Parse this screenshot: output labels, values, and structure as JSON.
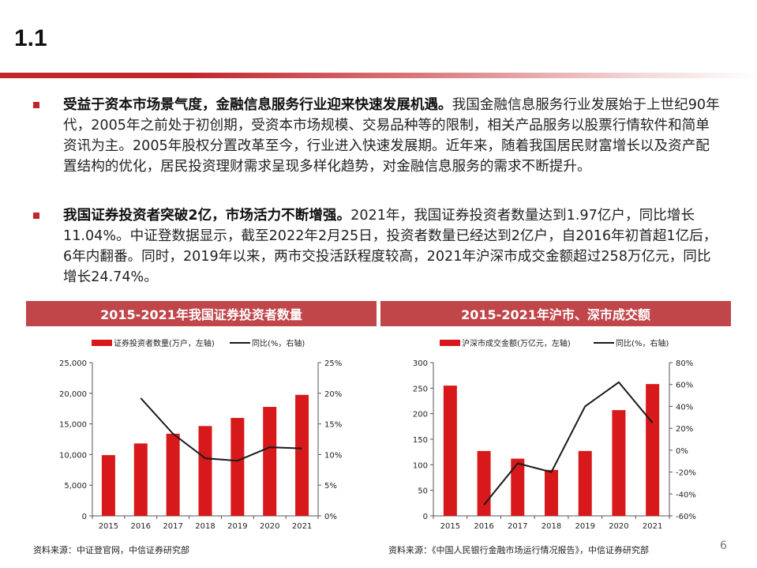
{
  "header": {
    "section_number": "1.1"
  },
  "bullets": [
    {
      "bold": "受益于资本市场景气度，金融信息服务行业迎来快速发展机遇。",
      "text": "我国金融信息服务行业发展始于上世纪90年代，2005年之前处于初创期，受资本市场规模、交易品种等的限制，相关产品服务以股票行情软件和简单资讯为主。2005年股权分置改革至今，行业进入快速发展期。近年来，随着我国居民财富增长以及资产配置结构的优化，居民投资理财需求呈现多样化趋势，对金融信息服务的需求不断提升。"
    },
    {
      "bold": "我国证券投资者突破2亿，市场活力不断增强。",
      "text": "2021年，我国证券投资者数量达到1.97亿户，同比增长11.04%。中证登数据显示，截至2022年2月25日，投资者数量已经达到2亿户，自2016年初首超1亿后，6年内翻番。同时，2019年以来，两市交投活跃程度较高，2021年沪深市成交金额超过258万亿元，同比增长24.74%。"
    }
  ],
  "chart_data": [
    {
      "type": "bar",
      "title": "2015-2021年我国证券投资者数量",
      "categories": [
        "2015",
        "2016",
        "2017",
        "2018",
        "2019",
        "2020",
        "2021"
      ],
      "series": [
        {
          "name": "证券投资者数量(万户，左轴)",
          "type": "bar",
          "axis": "left",
          "values": [
            9910,
            11811,
            13398,
            14651,
            15975,
            17777,
            19740
          ]
        },
        {
          "name": "同比(%，右轴)",
          "type": "line",
          "axis": "right",
          "values": [
            null,
            19.2,
            13.4,
            9.4,
            9.0,
            11.2,
            11.0
          ]
        }
      ],
      "y_left": {
        "min": 0,
        "max": 25000,
        "ticks": [
          "0",
          "5,000",
          "10,000",
          "15,000",
          "20,000",
          "25,000"
        ]
      },
      "y_right": {
        "min": 0,
        "max": 25,
        "ticks": [
          "0%",
          "5%",
          "10%",
          "15%",
          "20%",
          "25%"
        ]
      },
      "legend_position": "top",
      "grid": false,
      "colors": {
        "bar": "#d7191c",
        "line": "#1a1a1a"
      }
    },
    {
      "type": "bar",
      "title": "2015-2021年沪市、深市成交额",
      "categories": [
        "2015",
        "2016",
        "2017",
        "2018",
        "2019",
        "2020",
        "2021"
      ],
      "series": [
        {
          "name": "沪深市成交金额(万亿元，左轴)",
          "type": "bar",
          "axis": "left",
          "values": [
            255,
            127,
            112,
            90,
            127,
            207,
            258
          ]
        },
        {
          "name": "同比(%，右轴)",
          "type": "line",
          "axis": "right",
          "values": [
            null,
            -50,
            -12,
            -20,
            40,
            62,
            25
          ]
        }
      ],
      "y_left": {
        "min": 0,
        "max": 300,
        "ticks": [
          "0",
          "50",
          "100",
          "150",
          "200",
          "250",
          "300"
        ]
      },
      "y_right": {
        "min": -60,
        "max": 80,
        "ticks": [
          "-60%",
          "-40%",
          "-20%",
          "0%",
          "20%",
          "40%",
          "60%",
          "80%"
        ]
      },
      "legend_position": "top",
      "grid": false,
      "colors": {
        "bar": "#d7191c",
        "line": "#1a1a1a"
      }
    }
  ],
  "sources": [
    "资料来源：中证登官网，中信证券研究部",
    "资料来源：《中国人民银行金融市场运行情况报告》，中信证券研究部"
  ],
  "page_number": "6"
}
